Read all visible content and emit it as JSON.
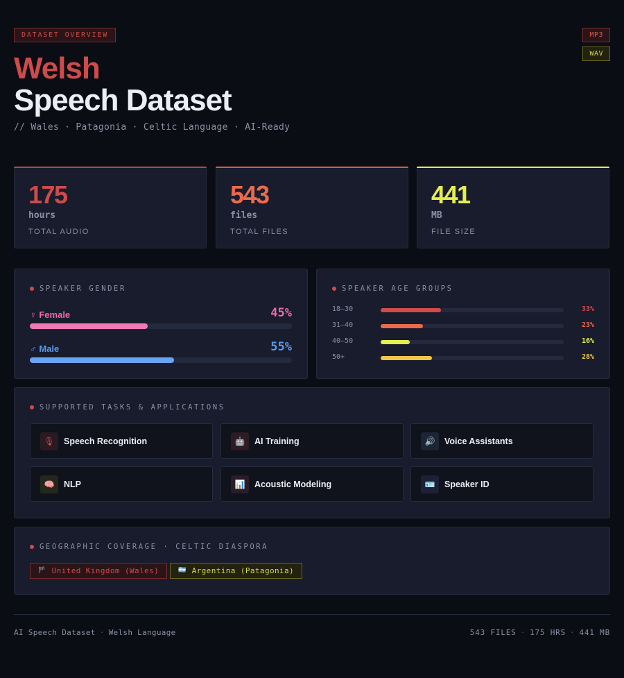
{
  "header": {
    "tag": "DATASET OVERVIEW",
    "title_line1": "Welsh",
    "title_line2": "Speech Dataset",
    "subtitle": "// Wales · Patagonia · Celtic Language · AI-Ready",
    "formats": [
      "MP3",
      "WAV"
    ]
  },
  "stats": [
    {
      "value": "175",
      "unit": "hours",
      "label": "TOTAL AUDIO",
      "color": "#cf4b4b"
    },
    {
      "value": "543",
      "unit": "files",
      "label": "TOTAL FILES",
      "color": "#ec6a4c"
    },
    {
      "value": "441",
      "unit": "MB",
      "label": "FILE SIZE",
      "color": "#e4ef4e"
    }
  ],
  "gender": {
    "title": "SPEAKER GENDER",
    "items": [
      {
        "label": "♀ Female",
        "pct": "45%",
        "value": 45,
        "color": "#f06aa8"
      },
      {
        "label": "♂ Male",
        "pct": "55%",
        "value": 55,
        "color": "#5a9af0"
      }
    ]
  },
  "age": {
    "title": "SPEAKER AGE GROUPS",
    "items": [
      {
        "label": "18–30",
        "pct": "33%",
        "value": 33,
        "color": "#d24a4a"
      },
      {
        "label": "31–40",
        "pct": "23%",
        "value": 23,
        "color": "#ec6a4c"
      },
      {
        "label": "40–50",
        "pct": "16%",
        "value": 16,
        "color": "#e4ef4e"
      },
      {
        "label": "50+",
        "pct": "28%",
        "value": 28,
        "color": "#f0c64a"
      }
    ]
  },
  "tasks": {
    "title": "SUPPORTED TASKS & APPLICATIONS",
    "items": [
      {
        "label": "Speech Recognition",
        "icon": "🎙",
        "icon_name": "microphone-icon",
        "bg": "#2a1a22"
      },
      {
        "label": "AI Training",
        "icon": "🤖",
        "icon_name": "robot-icon",
        "bg": "#2c1c24"
      },
      {
        "label": "Voice Assistants",
        "icon": "🔊",
        "icon_name": "speaker-icon",
        "bg": "#1c2436"
      },
      {
        "label": "NLP",
        "icon": "🧠",
        "icon_name": "brain-icon",
        "bg": "#24281c"
      },
      {
        "label": "Acoustic Modeling",
        "icon": "📊",
        "icon_name": "bar-chart-icon",
        "bg": "#2a1c28"
      },
      {
        "label": "Speaker ID",
        "icon": "🪪",
        "icon_name": "id-card-icon",
        "bg": "#1e2038"
      }
    ]
  },
  "geo": {
    "title": "GEOGRAPHIC COVERAGE · CELTIC DIASPORA",
    "items": [
      {
        "flag": "🏴",
        "label": "United Kingdom (Wales)"
      },
      {
        "flag": "🇦🇷",
        "label": "Argentina (Patagonia)"
      }
    ]
  },
  "footer": {
    "left_a": "AI Speech Dataset",
    "left_sep": "·",
    "left_b": "Welsh Language",
    "right_a": "543 FILES",
    "right_b": "175 HRS",
    "right_c": "441 MB"
  }
}
